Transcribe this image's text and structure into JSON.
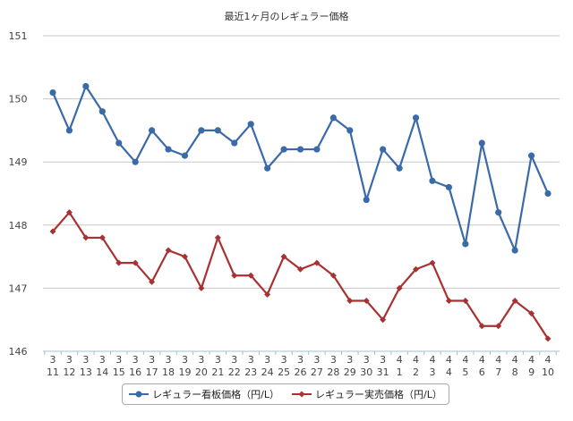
{
  "chart_data": {
    "type": "line",
    "title": "最近1ヶ月のレギュラー価格",
    "xlabel": "",
    "ylabel": "",
    "ylim": [
      146,
      151
    ],
    "yticks": [
      146,
      147,
      148,
      149,
      150,
      151
    ],
    "grid": true,
    "legend_position": "bottom",
    "categories": [
      [
        "3",
        "11"
      ],
      [
        "3",
        "12"
      ],
      [
        "3",
        "13"
      ],
      [
        "3",
        "14"
      ],
      [
        "3",
        "15"
      ],
      [
        "3",
        "16"
      ],
      [
        "3",
        "17"
      ],
      [
        "3",
        "18"
      ],
      [
        "3",
        "19"
      ],
      [
        "3",
        "20"
      ],
      [
        "3",
        "21"
      ],
      [
        "3",
        "22"
      ],
      [
        "3",
        "23"
      ],
      [
        "3",
        "24"
      ],
      [
        "3",
        "25"
      ],
      [
        "3",
        "26"
      ],
      [
        "3",
        "27"
      ],
      [
        "3",
        "28"
      ],
      [
        "3",
        "29"
      ],
      [
        "3",
        "30"
      ],
      [
        "3",
        "31"
      ],
      [
        "4",
        "1"
      ],
      [
        "4",
        "2"
      ],
      [
        "4",
        "3"
      ],
      [
        "4",
        "4"
      ],
      [
        "4",
        "5"
      ],
      [
        "4",
        "6"
      ],
      [
        "4",
        "7"
      ],
      [
        "4",
        "8"
      ],
      [
        "4",
        "9"
      ],
      [
        "4",
        "10"
      ]
    ],
    "series": [
      {
        "name": "レギュラー看板価格（円/L）",
        "color": "#3a6aa8",
        "marker": "circle",
        "values": [
          150.1,
          149.5,
          150.2,
          149.8,
          149.3,
          149.0,
          149.5,
          149.2,
          149.1,
          149.5,
          149.5,
          149.3,
          149.6,
          148.9,
          149.2,
          149.2,
          149.2,
          149.7,
          149.5,
          148.4,
          149.2,
          148.9,
          149.7,
          148.7,
          148.6,
          147.7,
          149.3,
          148.2,
          147.6,
          149.1,
          148.5
        ]
      },
      {
        "name": "レギュラー実売価格（円/L）",
        "color": "#a83232",
        "marker": "diamond",
        "values": [
          147.9,
          148.2,
          147.8,
          147.8,
          147.4,
          147.4,
          147.1,
          147.6,
          147.5,
          147.0,
          147.8,
          147.2,
          147.2,
          146.9,
          147.5,
          147.3,
          147.4,
          147.2,
          146.8,
          146.8,
          146.5,
          147.0,
          147.3,
          147.4,
          146.8,
          146.8,
          146.4,
          146.4,
          146.8,
          146.6,
          146.2
        ]
      }
    ]
  }
}
